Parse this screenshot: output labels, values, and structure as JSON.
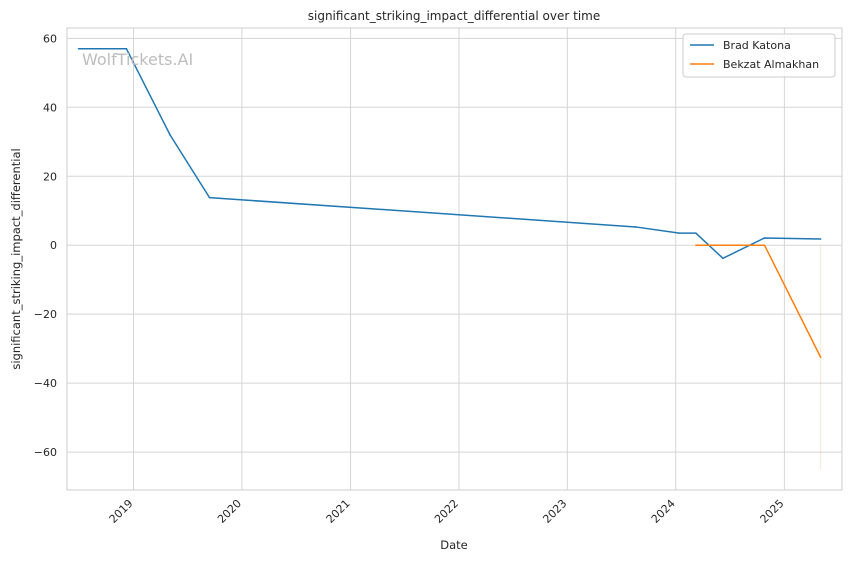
{
  "chart_data": {
    "type": "line",
    "title": "significant_striking_impact_differential over time",
    "xlabel": "Date",
    "ylabel": "significant_striking_impact_differential",
    "watermark": "WolfTickets.AI",
    "x_tick_labels": [
      "2019",
      "2020",
      "2021",
      "2022",
      "2023",
      "2024",
      "2025"
    ],
    "y_tick_labels": [
      "60",
      "40",
      "20",
      "0",
      "−20",
      "−40",
      "−60"
    ],
    "y_ticks": [
      60,
      40,
      20,
      0,
      -20,
      -40,
      -60
    ],
    "x_ticks": [
      "2019-01-01",
      "2020-01-01",
      "2021-01-01",
      "2022-01-01",
      "2023-01-01",
      "2024-01-01",
      "2025-01-01"
    ],
    "xlim": [
      "2018-05-22",
      "2025-07-14"
    ],
    "ylim": [
      -71,
      63
    ],
    "grid": true,
    "legend_position": "top-right",
    "series": [
      {
        "name": "Brad Katona",
        "color": "#1f77b4",
        "points": [
          [
            "2018-06-30",
            57
          ],
          [
            "2018-12-08",
            57
          ],
          [
            "2019-05-04",
            32
          ],
          [
            "2019-09-14",
            13.8
          ],
          [
            "2023-08-19",
            5.3
          ],
          [
            "2024-01-13",
            3.5
          ],
          [
            "2024-03-09",
            3.5
          ],
          [
            "2024-06-08",
            -3.8
          ],
          [
            "2024-10-26",
            2.1
          ],
          [
            "2025-05-03",
            1.8
          ]
        ]
      },
      {
        "name": "Bekzat Almakhan",
        "color": "#ff7f0e",
        "points": [
          [
            "2024-03-09",
            0
          ],
          [
            "2024-10-26",
            0
          ],
          [
            "2025-05-03",
            -32.5
          ]
        ]
      }
    ],
    "error_band": {
      "color": "#ff7f0e",
      "x": "2025-05-03",
      "ymin": -65,
      "ymax": 0
    }
  }
}
